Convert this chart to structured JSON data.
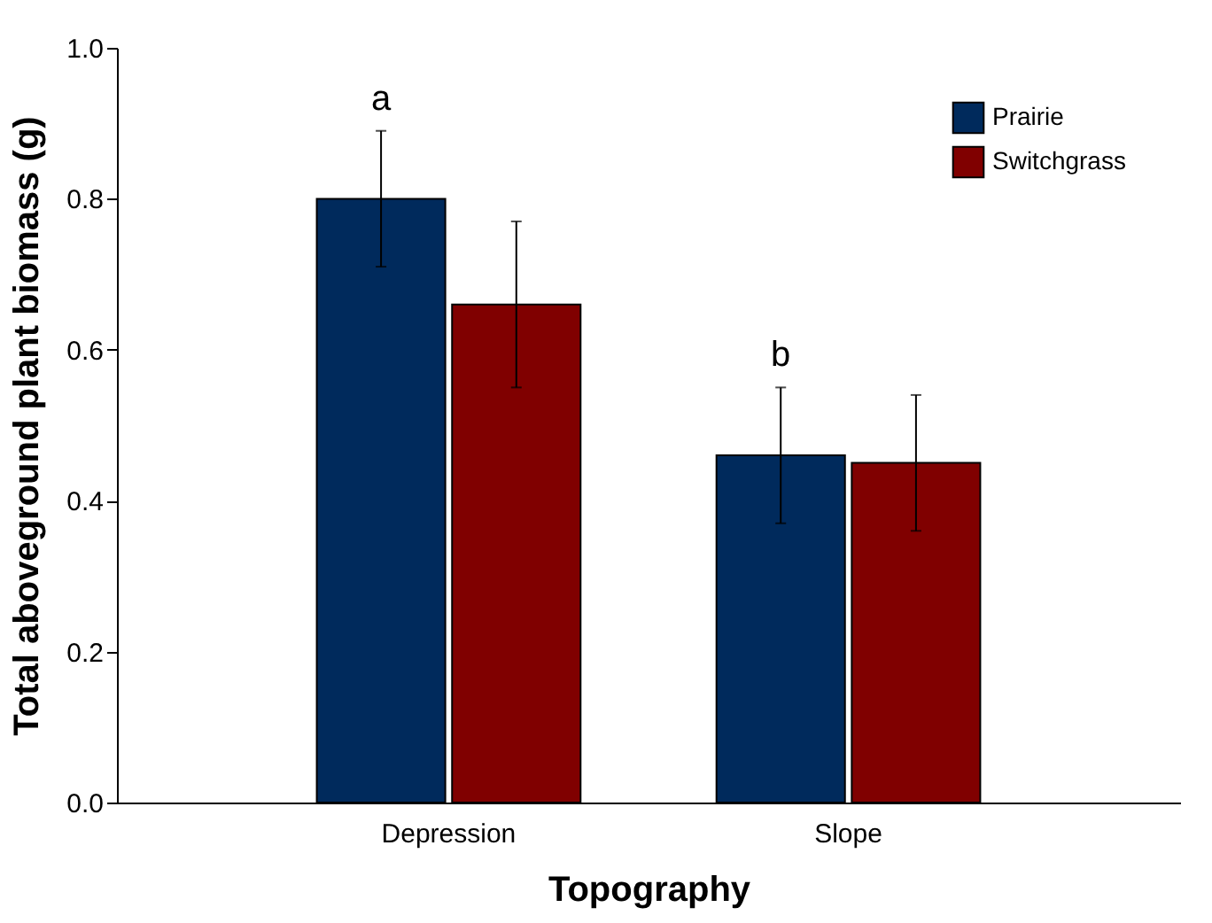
{
  "chart_data": {
    "type": "bar",
    "xlabel": "Topography",
    "ylabel": "Total aboveground plant biomass (g)",
    "categories": [
      "Depression",
      "Slope"
    ],
    "series": [
      {
        "name": "Prairie",
        "color": "#002a5c",
        "values": [
          0.8,
          0.46
        ],
        "errors": [
          0.09,
          0.09
        ]
      },
      {
        "name": "Switchgrass",
        "color": "#800000",
        "values": [
          0.66,
          0.45
        ],
        "errors": [
          0.11,
          0.09
        ]
      }
    ],
    "ylim": [
      0,
      1
    ],
    "yticks": [
      {
        "value": 0,
        "label": "0.0"
      },
      {
        "value": 0.2,
        "label": "0.2"
      },
      {
        "value": 0.4,
        "label": "0.4"
      },
      {
        "value": 0.6,
        "label": "0.6"
      },
      {
        "value": 0.8,
        "label": "0.8"
      },
      {
        "value": 1,
        "label": "1.0"
      }
    ],
    "annotations": [
      "a",
      "b"
    ],
    "grid": false,
    "legend": "top right"
  }
}
